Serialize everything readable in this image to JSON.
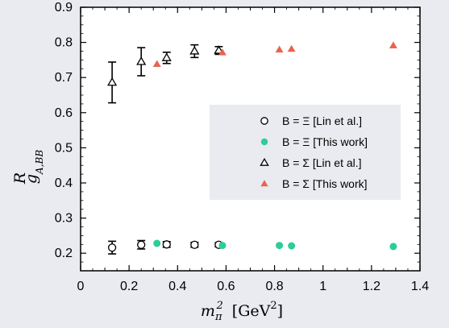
{
  "chart_data": {
    "type": "scatter",
    "xlabel": "m_π² [GeV²]",
    "ylabel": "g^R_A,BB",
    "xlim": [
      0,
      1.4
    ],
    "ylim": [
      0.15,
      0.9
    ],
    "x_ticks": [
      "0",
      "0.2",
      "0.4",
      "0.6",
      "0.8",
      "1",
      "1.2",
      "1.4"
    ],
    "y_ticks": [
      "0.2",
      "0.3",
      "0.4",
      "0.5",
      "0.6",
      "0.7",
      "0.8",
      "0.9"
    ],
    "legend_position": "center-right",
    "grid": false,
    "series": [
      {
        "name": "B = Ξ  [Lin et al.]",
        "marker": "open-circle",
        "color": "#000000",
        "points": [
          {
            "x": 0.13,
            "y": 0.216,
            "err": 0.018
          },
          {
            "x": 0.25,
            "y": 0.224,
            "err": 0.012
          },
          {
            "x": 0.355,
            "y": 0.225,
            "err": 0.008
          },
          {
            "x": 0.47,
            "y": 0.224,
            "err": 0.007
          },
          {
            "x": 0.57,
            "y": 0.224,
            "err": 0.006
          }
        ]
      },
      {
        "name": "B = Ξ  [This work]",
        "marker": "filled-circle",
        "color": "#2ecc9a",
        "points": [
          {
            "x": 0.315,
            "y": 0.228
          },
          {
            "x": 0.585,
            "y": 0.222
          },
          {
            "x": 0.82,
            "y": 0.222
          },
          {
            "x": 0.87,
            "y": 0.221
          },
          {
            "x": 1.29,
            "y": 0.219
          }
        ]
      },
      {
        "name": "B = Σ  [Lin et al.]",
        "marker": "open-triangle",
        "color": "#000000",
        "points": [
          {
            "x": 0.13,
            "y": 0.686,
            "err": 0.058
          },
          {
            "x": 0.25,
            "y": 0.745,
            "err": 0.04
          },
          {
            "x": 0.355,
            "y": 0.756,
            "err": 0.016
          },
          {
            "x": 0.47,
            "y": 0.775,
            "err": 0.018
          },
          {
            "x": 0.57,
            "y": 0.777,
            "err": 0.011
          }
        ]
      },
      {
        "name": "B = Σ  [This work]",
        "marker": "filled-triangle",
        "color": "#e8644f",
        "points": [
          {
            "x": 0.315,
            "y": 0.738
          },
          {
            "x": 0.585,
            "y": 0.771
          },
          {
            "x": 0.82,
            "y": 0.779
          },
          {
            "x": 0.87,
            "y": 0.781
          },
          {
            "x": 1.29,
            "y": 0.791
          }
        ]
      }
    ]
  }
}
